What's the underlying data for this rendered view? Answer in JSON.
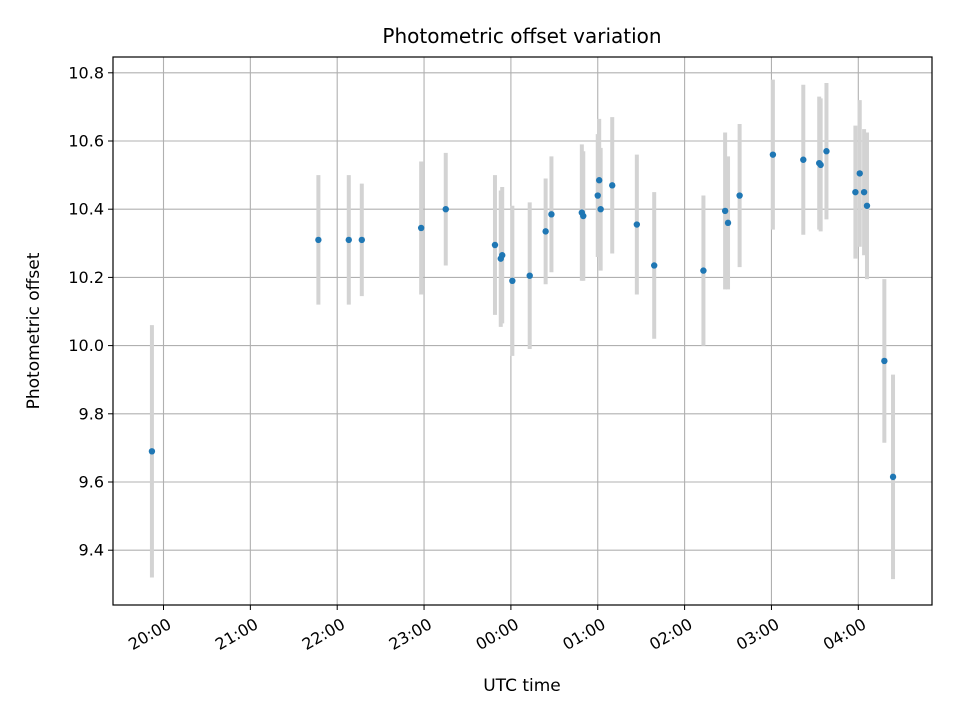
{
  "chart_data": {
    "type": "scatter",
    "title": "Photometric offset variation",
    "xlabel": "UTC time",
    "ylabel": "Photometric offset",
    "x_tick_labels": [
      "20:00",
      "21:00",
      "22:00",
      "23:00",
      "00:00",
      "01:00",
      "02:00",
      "03:00",
      "04:00"
    ],
    "y_tick_labels": [
      "9.4",
      "9.6",
      "9.8",
      "10.0",
      "10.2",
      "10.4",
      "10.6",
      "10.8"
    ],
    "ylim": [
      9.25,
      10.85
    ],
    "grid": true,
    "marker_color": "#1f77b4",
    "errorbar_color": "#d3d3d3",
    "series": [
      {
        "x": [
          "19:52",
          "21:47",
          "22:08",
          "22:17",
          "22:58",
          "23:15",
          "23:49",
          "23:53",
          "23:54",
          "00:01",
          "00:13",
          "00:24",
          "00:28",
          "00:49",
          "00:50",
          "01:00",
          "01:01",
          "01:02",
          "01:10",
          "01:27",
          "01:39",
          "02:13",
          "02:28",
          "02:30",
          "02:38",
          "03:01",
          "03:22",
          "03:33",
          "03:34",
          "03:38",
          "03:58",
          "04:01",
          "04:04",
          "04:06",
          "04:18",
          "04:24"
        ],
        "y": [
          9.69,
          10.31,
          10.31,
          10.31,
          10.345,
          10.4,
          10.295,
          10.255,
          10.265,
          10.19,
          10.205,
          10.335,
          10.385,
          10.39,
          10.38,
          10.44,
          10.485,
          10.4,
          10.47,
          10.355,
          10.235,
          10.22,
          10.395,
          10.36,
          10.44,
          10.56,
          10.545,
          10.535,
          10.53,
          10.57,
          10.45,
          10.505,
          10.45,
          10.41,
          9.955,
          9.615
        ],
        "yerr": [
          0.37,
          0.19,
          0.19,
          0.165,
          0.195,
          0.165,
          0.205,
          0.2,
          0.2,
          0.22,
          0.215,
          0.155,
          0.17,
          0.2,
          0.19,
          0.18,
          0.18,
          0.18,
          0.2,
          0.205,
          0.215,
          0.22,
          0.23,
          0.195,
          0.21,
          0.22,
          0.22,
          0.195,
          0.195,
          0.2,
          0.195,
          0.215,
          0.185,
          0.215,
          0.24,
          0.3
        ]
      }
    ]
  }
}
